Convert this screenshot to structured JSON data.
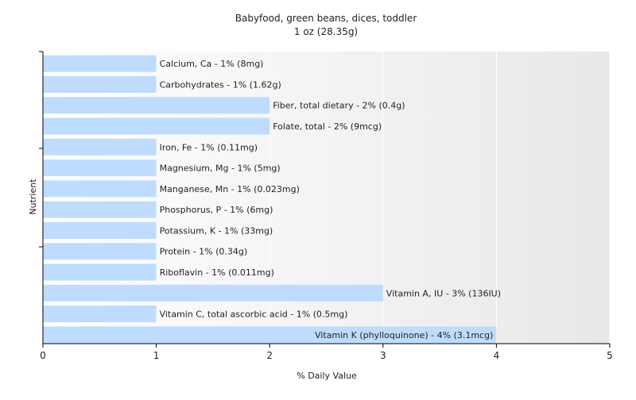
{
  "chart_data": {
    "type": "bar",
    "orientation": "horizontal",
    "title": "Babyfood, green beans, dices, toddler",
    "subtitle": "1 oz (28.35g)",
    "xlabel": "% Daily Value",
    "ylabel": "Nutrient",
    "xlim": [
      0,
      5
    ],
    "xticks": [
      "0",
      "1",
      "2",
      "3",
      "4",
      "5"
    ],
    "grid": true,
    "bar_color": "#bfdcff",
    "categories": [
      "Calcium, Ca",
      "Carbohydrates",
      "Fiber, total dietary",
      "Folate, total",
      "Iron, Fe",
      "Magnesium, Mg",
      "Manganese, Mn",
      "Phosphorus, P",
      "Potassium, K",
      "Protein",
      "Riboflavin",
      "Vitamin A, IU",
      "Vitamin C, total ascorbic acid",
      "Vitamin K (phylloquinone)"
    ],
    "values": [
      1,
      1,
      2,
      2,
      1,
      1,
      1,
      1,
      1,
      1,
      1,
      3,
      1,
      4
    ],
    "labels": [
      "Calcium, Ca - 1% (8mg)",
      "Carbohydrates - 1% (1.62g)",
      "Fiber, total dietary - 2% (0.4g)",
      "Folate, total - 2% (9mcg)",
      "Iron, Fe - 1% (0.11mg)",
      "Magnesium, Mg - 1% (5mg)",
      "Manganese, Mn - 1% (0.023mg)",
      "Phosphorus, P - 1% (6mg)",
      "Potassium, K - 1% (33mg)",
      "Protein - 1% (0.34g)",
      "Riboflavin - 1% (0.011mg)",
      "Vitamin A, IU - 3% (136IU)",
      "Vitamin C, total ascorbic acid - 1% (0.5mg)",
      "Vitamin K (phylloquinone) - 4% (3.1mcg)"
    ]
  }
}
